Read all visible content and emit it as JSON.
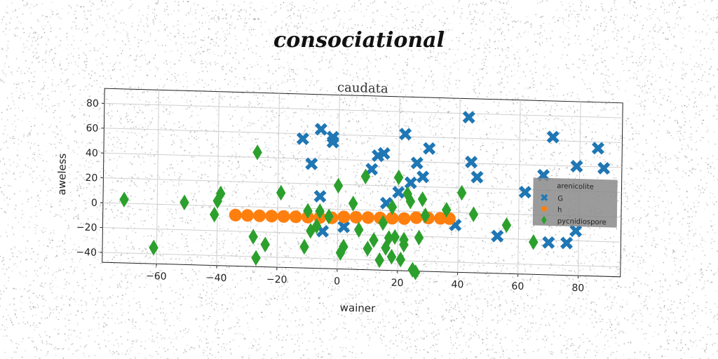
{
  "main_title": "consociational",
  "chart_data": {
    "type": "scatter",
    "title": "caudata",
    "xlabel": "wainer",
    "ylabel": "aweless",
    "xlim": [
      -78,
      94
    ],
    "ylim": [
      -48,
      92
    ],
    "x_ticks": [
      -60,
      -40,
      -20,
      0,
      20,
      40,
      60,
      80
    ],
    "y_ticks": [
      -40,
      -20,
      0,
      20,
      40,
      60,
      80
    ],
    "grid": true,
    "legend": {
      "title": "arenicolite",
      "placement": "right"
    },
    "series": [
      {
        "name": "G",
        "marker": "x",
        "color": "#1f77b4",
        "points": [
          [
            -12,
            56
          ],
          [
            -6,
            64
          ],
          [
            -2,
            58
          ],
          [
            -2,
            54
          ],
          [
            -9,
            36
          ],
          [
            22,
            62
          ],
          [
            43,
            77
          ],
          [
            30,
            51
          ],
          [
            71,
            63
          ],
          [
            68,
            32
          ],
          [
            79,
            40
          ],
          [
            86,
            55
          ],
          [
            88,
            39
          ],
          [
            44,
            41
          ],
          [
            46,
            29
          ],
          [
            13,
            44
          ],
          [
            15,
            46
          ],
          [
            11,
            33
          ],
          [
            24,
            23
          ],
          [
            26,
            39
          ],
          [
            28,
            28
          ],
          [
            20,
            15
          ],
          [
            16,
            6
          ],
          [
            -6,
            10
          ],
          [
            -5,
            -18
          ],
          [
            2,
            -14
          ],
          [
            39,
            -10
          ],
          [
            53,
            -18
          ],
          [
            62,
            18
          ],
          [
            70,
            -22
          ],
          [
            76,
            -22
          ],
          [
            79,
            -12
          ]
        ]
      },
      {
        "name": "h",
        "marker": "o",
        "color": "#ff7f0e",
        "points": [
          [
            -34,
            -7
          ],
          [
            -30,
            -7
          ],
          [
            -26,
            -7
          ],
          [
            -22,
            -7
          ],
          [
            -18,
            -7
          ],
          [
            -14,
            -7
          ],
          [
            -10,
            -7
          ],
          [
            -6,
            -7
          ],
          [
            -2,
            -7
          ],
          [
            2,
            -6
          ],
          [
            6,
            -6
          ],
          [
            10,
            -6
          ],
          [
            14,
            -6
          ],
          [
            18,
            -6
          ],
          [
            22,
            -6
          ],
          [
            26,
            -5
          ],
          [
            30,
            -5
          ],
          [
            34,
            -5
          ],
          [
            37,
            -5
          ]
        ]
      },
      {
        "name": "pycnidiospore",
        "marker": "d",
        "color": "#2ca02c",
        "points": [
          [
            -71,
            3
          ],
          [
            -61,
            -35
          ],
          [
            -51,
            2
          ],
          [
            -41,
            -7
          ],
          [
            -40,
            4
          ],
          [
            -39,
            10
          ],
          [
            -27,
            44
          ],
          [
            -28,
            -24
          ],
          [
            -27,
            -41
          ],
          [
            -24,
            -30
          ],
          [
            -19,
            12
          ],
          [
            -11,
            -31
          ],
          [
            -10,
            -2
          ],
          [
            -9,
            -18
          ],
          [
            -7,
            -14
          ],
          [
            -6,
            -2
          ],
          [
            -3,
            -6
          ],
          [
            0,
            19
          ],
          [
            1,
            -35
          ],
          [
            2,
            -30
          ],
          [
            5,
            5
          ],
          [
            7,
            -16
          ],
          [
            9,
            27
          ],
          [
            10,
            -31
          ],
          [
            12,
            -24
          ],
          [
            14,
            -40
          ],
          [
            15,
            -10
          ],
          [
            17,
            -22
          ],
          [
            18,
            -37
          ],
          [
            19,
            -21
          ],
          [
            20,
            27
          ],
          [
            21,
            -39
          ],
          [
            22,
            -23
          ],
          [
            23,
            14
          ],
          [
            24,
            8
          ],
          [
            25,
            -47
          ],
          [
            26,
            -49
          ],
          [
            27,
            -21
          ],
          [
            28,
            10
          ],
          [
            29,
            -3
          ],
          [
            36,
            2
          ],
          [
            41,
            16
          ],
          [
            45,
            -1
          ],
          [
            56,
            -9
          ],
          [
            65,
            -22
          ],
          [
            18,
            3
          ],
          [
            16,
            -30
          ],
          [
            22,
            -27
          ]
        ]
      }
    ]
  }
}
